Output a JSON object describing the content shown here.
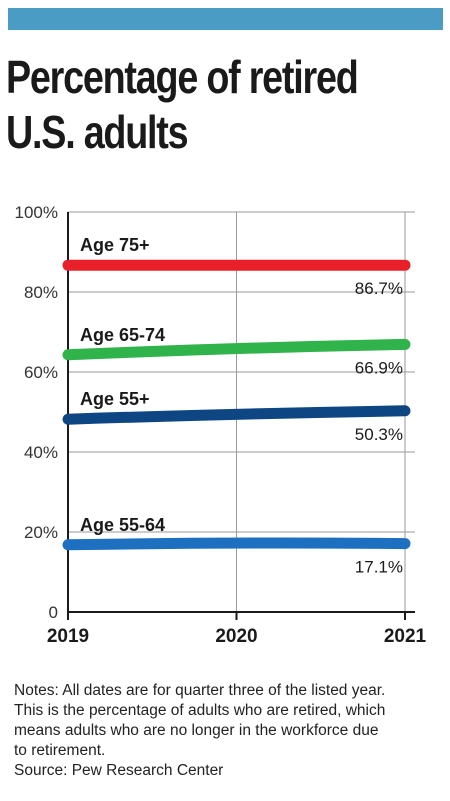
{
  "header": {
    "title_line1": "Percentage of retired",
    "title_line2": "U.S. adults"
  },
  "colors": {
    "accent_bar": "#4a9cc4"
  },
  "chart_data": {
    "type": "line",
    "x": [
      "2019",
      "2020",
      "2021"
    ],
    "ylim": [
      0,
      100
    ],
    "y_ticks": [
      "0",
      "20%",
      "40%",
      "60%",
      "80%",
      "100%"
    ],
    "y_tick_values": [
      0,
      20,
      40,
      60,
      80,
      100
    ],
    "grid": true,
    "series": [
      {
        "name": "Age 75+",
        "values": [
          86.7,
          86.7,
          86.7
        ],
        "end_label": "86.7%",
        "color": "#e8202a"
      },
      {
        "name": "Age 65-74",
        "values": [
          64.3,
          66.1,
          66.9
        ],
        "end_label": "66.9%",
        "color": "#2fb34a"
      },
      {
        "name": "Age 55+",
        "values": [
          48.2,
          49.6,
          50.3
        ],
        "end_label": "50.3%",
        "color": "#0d4683"
      },
      {
        "name": "Age 55-64",
        "values": [
          16.8,
          17.5,
          17.1
        ],
        "end_label": "17.1%",
        "color": "#1d6fc0"
      }
    ]
  },
  "notes": {
    "line1": "Notes: All dates are for quarter three of the listed year.",
    "line2": "This is the percentage of adults who are retired, which",
    "line3": "means adults who are no longer in the workforce due",
    "line4": "to retirement.",
    "source": "Source: Pew Research Center"
  }
}
